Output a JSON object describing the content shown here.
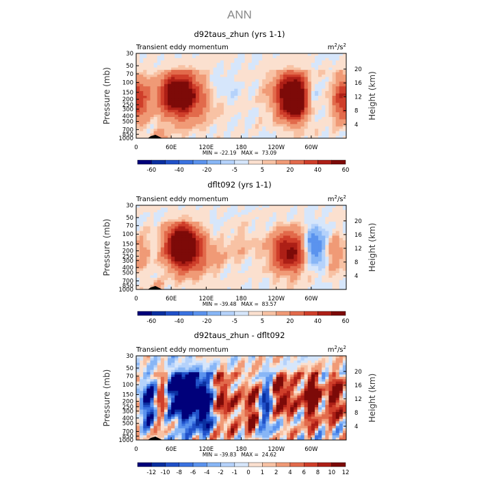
{
  "figure_title": "ANN",
  "colors": {
    "diverging": [
      "#00007a",
      "#0a2fa0",
      "#2050c8",
      "#3a72e0",
      "#5b93ee",
      "#88b6f6",
      "#b5d2fb",
      "#d6e6fb",
      "#fbe0cf",
      "#f8c2a4",
      "#f09a76",
      "#e26a4b",
      "#cf3e2a",
      "#ad1f16",
      "#7d0a08"
    ]
  },
  "chart_data": [
    {
      "type": "heatmap",
      "title": "d92taus_zhun (yrs 1-1)",
      "left_label": "Transient eddy momentum",
      "units_base": "m",
      "units_exp1": "2",
      "units_mid": "/s",
      "units_exp2": "2",
      "ylabel": "Pressure (mb)",
      "ylabel2": "Height (km)",
      "x_ticks": [
        "0",
        "60E",
        "120E",
        "180",
        "120W",
        "60W"
      ],
      "x_tick_lon": [
        0,
        60,
        120,
        180,
        240,
        300
      ],
      "xlim": [
        0,
        360
      ],
      "y_ticks": [
        "30",
        "50",
        "70",
        "100",
        "150",
        "200",
        "250",
        "300",
        "400",
        "500",
        "700",
        "850",
        "1000"
      ],
      "y_tick_p": [
        30,
        50,
        70,
        100,
        150,
        200,
        250,
        300,
        400,
        500,
        700,
        850,
        1000
      ],
      "ylim": [
        1000,
        30
      ],
      "y_scale": "log",
      "height_ticks": [
        "20",
        "16",
        "12",
        "8",
        "4"
      ],
      "height_tick_km": [
        20,
        16,
        12,
        8,
        4
      ],
      "minmax": "MIN = -22.19   MAX =  73.09",
      "min": -22.19,
      "max": 73.09,
      "colorbar_labels": [
        "-60",
        "-40",
        "-20",
        "-5",
        "5",
        "20",
        "40",
        "60"
      ],
      "colorbar_label_slots": [
        1,
        3,
        5,
        7,
        9,
        11,
        13,
        15
      ],
      "features": [
        {
          "lon": 72,
          "p": 160,
          "amp": 55,
          "wlon": 22,
          "wp": 0.16
        },
        {
          "lon": 88,
          "p": 190,
          "amp": 25,
          "wlon": 32,
          "wp": 0.22
        },
        {
          "lon": 272,
          "p": 195,
          "amp": 70,
          "wlon": 17,
          "wp": 0.17
        },
        {
          "lon": 262,
          "p": 150,
          "amp": 28,
          "wlon": 25,
          "wp": 0.2
        },
        {
          "lon": 6,
          "p": 200,
          "amp": 22,
          "wlon": 14,
          "wp": 0.18
        },
        {
          "lon": 352,
          "p": 200,
          "amp": 25,
          "wlon": 14,
          "wp": 0.18
        },
        {
          "lon": 300,
          "p": 180,
          "amp": -20,
          "wlon": 12,
          "wp": 0.14
        },
        {
          "lon": 140,
          "p": 120,
          "amp": -10,
          "wlon": 20,
          "wp": 0.1
        },
        {
          "lon": 40,
          "p": 900,
          "amp": 14,
          "wlon": 8,
          "wp": 0.06
        }
      ],
      "noise_amp": 3.5
    },
    {
      "type": "heatmap",
      "title": "dflt092 (yrs 1-1)",
      "left_label": "Transient eddy momentum",
      "units_base": "m",
      "units_exp1": "2",
      "units_mid": "/s",
      "units_exp2": "2",
      "ylabel": "Pressure (mb)",
      "ylabel2": "Height (km)",
      "x_ticks": [
        "0",
        "60E",
        "120E",
        "180",
        "120W",
        "60W"
      ],
      "x_tick_lon": [
        0,
        60,
        120,
        180,
        240,
        300
      ],
      "xlim": [
        0,
        360
      ],
      "y_ticks": [
        "30",
        "50",
        "70",
        "100",
        "150",
        "200",
        "250",
        "300",
        "400",
        "500",
        "700",
        "850",
        "1000"
      ],
      "y_tick_p": [
        30,
        50,
        70,
        100,
        150,
        200,
        250,
        300,
        400,
        500,
        700,
        850,
        1000
      ],
      "ylim": [
        1000,
        30
      ],
      "y_scale": "log",
      "height_ticks": [
        "20",
        "16",
        "12",
        "8",
        "4"
      ],
      "height_tick_km": [
        20,
        16,
        12,
        8,
        4
      ],
      "minmax": "MIN = -39.48   MAX =  83.57",
      "min": -39.48,
      "max": 83.57,
      "colorbar_labels": [
        "-60",
        "-40",
        "-20",
        "-5",
        "5",
        "20",
        "40",
        "60"
      ],
      "colorbar_label_slots": [
        1,
        3,
        5,
        7,
        9,
        11,
        13,
        15
      ],
      "features": [
        {
          "lon": 78,
          "p": 160,
          "amp": 75,
          "wlon": 18,
          "wp": 0.17
        },
        {
          "lon": 100,
          "p": 200,
          "amp": 25,
          "wlon": 30,
          "wp": 0.2
        },
        {
          "lon": 262,
          "p": 210,
          "amp": 55,
          "wlon": 22,
          "wp": 0.17
        },
        {
          "lon": 305,
          "p": 170,
          "amp": -38,
          "wlon": 12,
          "wp": 0.15
        },
        {
          "lon": 10,
          "p": 220,
          "amp": 14,
          "wlon": 10,
          "wp": 0.15
        },
        {
          "lon": 340,
          "p": 230,
          "amp": 18,
          "wlon": 10,
          "wp": 0.15
        },
        {
          "lon": 175,
          "p": 140,
          "amp": 10,
          "wlon": 20,
          "wp": 0.14
        },
        {
          "lon": 140,
          "p": 100,
          "amp": -8,
          "wlon": 25,
          "wp": 0.1
        },
        {
          "lon": 35,
          "p": 900,
          "amp": 12,
          "wlon": 8,
          "wp": 0.06
        }
      ],
      "noise_amp": 3.5
    },
    {
      "type": "heatmap",
      "title": "d92taus_zhun - dflt092",
      "left_label": "Transient eddy momentum",
      "units_base": "m",
      "units_exp1": "2",
      "units_mid": "/s",
      "units_exp2": "2",
      "ylabel": "Pressure (mb)",
      "ylabel2": "Height (km)",
      "x_ticks": [
        "0",
        "60E",
        "120E",
        "180",
        "120W",
        "60W"
      ],
      "x_tick_lon": [
        0,
        60,
        120,
        180,
        240,
        300
      ],
      "xlim": [
        0,
        360
      ],
      "y_ticks": [
        "30",
        "50",
        "70",
        "100",
        "150",
        "200",
        "250",
        "300",
        "400",
        "500",
        "700",
        "850",
        "1000"
      ],
      "y_tick_p": [
        30,
        50,
        70,
        100,
        150,
        200,
        250,
        300,
        400,
        500,
        700,
        850,
        1000
      ],
      "ylim": [
        1000,
        30
      ],
      "y_scale": "log",
      "height_ticks": [
        "20",
        "16",
        "12",
        "8",
        "4"
      ],
      "height_tick_km": [
        20,
        16,
        12,
        8,
        4
      ],
      "minmax": "MIN = -39.83   MAX =  24.62",
      "min": -39.83,
      "max": 24.62,
      "colorbar_labels": [
        "-12",
        "-10",
        "-8",
        "-6",
        "-4",
        "-2",
        "-1",
        "0",
        "1",
        "2",
        "4",
        "6",
        "8",
        "10",
        "12"
      ],
      "colorbar_label_slots": [
        1,
        2,
        3,
        4,
        5,
        6,
        7,
        8,
        9,
        10,
        11,
        12,
        13,
        14,
        15
      ],
      "features": [
        {
          "lon": 20,
          "p": 200,
          "amp": -12,
          "wlon": 12,
          "wp": 0.2
        },
        {
          "lon": 78,
          "p": 150,
          "amp": -20,
          "wlon": 18,
          "wp": 0.22
        },
        {
          "lon": 110,
          "p": 170,
          "amp": -14,
          "wlon": 14,
          "wp": 0.22
        },
        {
          "lon": 150,
          "p": 240,
          "amp": 12,
          "wlon": 12,
          "wp": 0.25
        },
        {
          "lon": 195,
          "p": 260,
          "amp": 10,
          "wlon": 10,
          "wp": 0.25
        },
        {
          "lon": 225,
          "p": 230,
          "amp": -10,
          "wlon": 10,
          "wp": 0.2
        },
        {
          "lon": 250,
          "p": 160,
          "amp": 14,
          "wlon": 12,
          "wp": 0.18
        },
        {
          "lon": 300,
          "p": 170,
          "amp": 15,
          "wlon": 12,
          "wp": 0.2
        },
        {
          "lon": 345,
          "p": 170,
          "amp": 13,
          "wlon": 11,
          "wp": 0.2
        },
        {
          "lon": 45,
          "p": 180,
          "amp": 10,
          "wlon": 10,
          "wp": 0.2
        },
        {
          "lon": 130,
          "p": 400,
          "amp": -6,
          "wlon": 20,
          "wp": 0.15
        }
      ],
      "noise_amp": 5.5
    }
  ]
}
